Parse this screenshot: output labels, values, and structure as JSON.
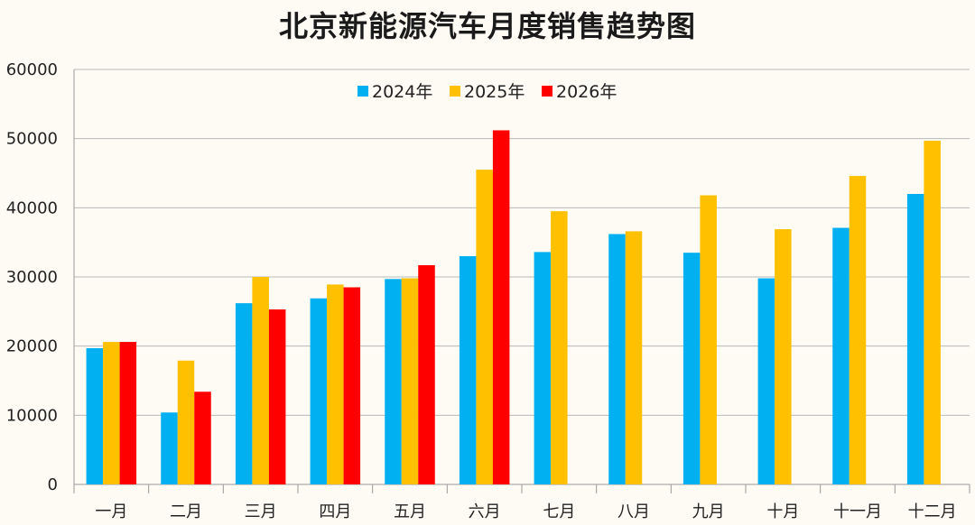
{
  "chart_data": {
    "type": "bar",
    "title": "北京新能源汽车月度销售趋势图",
    "xlabel": "",
    "ylabel": "",
    "ylim": [
      0,
      60000
    ],
    "yticks": [
      0,
      10000,
      20000,
      30000,
      40000,
      50000,
      60000
    ],
    "grid": true,
    "legend_position": "top-center",
    "categories": [
      "一月",
      "二月",
      "三月",
      "四月",
      "五月",
      "六月",
      "七月",
      "八月",
      "九月",
      "十月",
      "十一月",
      "十二月"
    ],
    "series": [
      {
        "name": "2024年",
        "color": "#00b0f0",
        "values": [
          19700,
          10400,
          26200,
          26900,
          29700,
          33000,
          33600,
          36200,
          33500,
          29800,
          37100,
          42000
        ]
      },
      {
        "name": "2025年",
        "color": "#ffc000",
        "values": [
          20600,
          17900,
          30000,
          28900,
          29800,
          45500,
          39500,
          36600,
          41800,
          36900,
          44600,
          49700
        ]
      },
      {
        "name": "2026年",
        "color": "#ff0000",
        "values": [
          20600,
          13400,
          25300,
          28500,
          31700,
          51200,
          null,
          null,
          null,
          null,
          null,
          null
        ]
      }
    ]
  }
}
